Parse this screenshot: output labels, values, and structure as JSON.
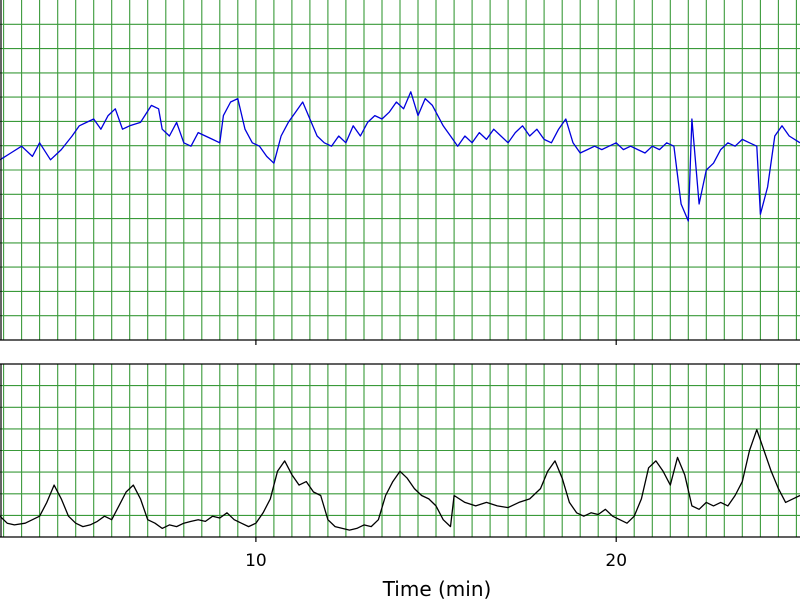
{
  "chart_data": [
    {
      "type": "line",
      "panel": "top",
      "title": "",
      "xlabel": "",
      "ylabel": "",
      "xlim": [
        2.9,
        25.1
      ],
      "ylim": [
        0,
        100
      ],
      "grid": true,
      "colors": {
        "line": "#0000dd",
        "grid": "#3a9a3a"
      },
      "series": [
        {
          "values": [
            [
              2.9,
              53
            ],
            [
              3.2,
              55
            ],
            [
              3.5,
              57
            ],
            [
              3.8,
              54
            ],
            [
              4.0,
              58
            ],
            [
              4.3,
              53
            ],
            [
              4.6,
              56
            ],
            [
              4.9,
              60
            ],
            [
              5.1,
              63
            ],
            [
              5.3,
              64
            ],
            [
              5.5,
              65
            ],
            [
              5.7,
              62
            ],
            [
              5.9,
              66
            ],
            [
              6.1,
              68
            ],
            [
              6.3,
              62
            ],
            [
              6.5,
              63
            ],
            [
              6.8,
              64
            ],
            [
              7.1,
              69
            ],
            [
              7.3,
              68
            ],
            [
              7.4,
              62
            ],
            [
              7.6,
              60
            ],
            [
              7.8,
              64
            ],
            [
              8.0,
              58
            ],
            [
              8.2,
              57
            ],
            [
              8.4,
              61
            ],
            [
              8.6,
              60
            ],
            [
              8.8,
              59
            ],
            [
              9.0,
              58
            ],
            [
              9.1,
              66
            ],
            [
              9.3,
              70
            ],
            [
              9.5,
              71
            ],
            [
              9.7,
              62
            ],
            [
              9.9,
              58
            ],
            [
              10.1,
              57
            ],
            [
              10.3,
              54
            ],
            [
              10.5,
              52
            ],
            [
              10.7,
              60
            ],
            [
              10.9,
              64
            ],
            [
              11.1,
              67
            ],
            [
              11.3,
              70
            ],
            [
              11.5,
              65
            ],
            [
              11.7,
              60
            ],
            [
              11.9,
              58
            ],
            [
              12.1,
              57
            ],
            [
              12.3,
              60
            ],
            [
              12.5,
              58
            ],
            [
              12.7,
              63
            ],
            [
              12.9,
              60
            ],
            [
              13.1,
              64
            ],
            [
              13.3,
              66
            ],
            [
              13.5,
              65
            ],
            [
              13.7,
              67
            ],
            [
              13.9,
              70
            ],
            [
              14.1,
              68
            ],
            [
              14.3,
              73
            ],
            [
              14.5,
              66
            ],
            [
              14.7,
              71
            ],
            [
              14.9,
              69
            ],
            [
              15.2,
              63
            ],
            [
              15.4,
              60
            ],
            [
              15.6,
              57
            ],
            [
              15.8,
              60
            ],
            [
              16.0,
              58
            ],
            [
              16.2,
              61
            ],
            [
              16.4,
              59
            ],
            [
              16.6,
              62
            ],
            [
              16.8,
              60
            ],
            [
              17.0,
              58
            ],
            [
              17.2,
              61
            ],
            [
              17.4,
              63
            ],
            [
              17.6,
              60
            ],
            [
              17.8,
              62
            ],
            [
              18.0,
              59
            ],
            [
              18.2,
              58
            ],
            [
              18.4,
              62
            ],
            [
              18.6,
              65
            ],
            [
              18.8,
              58
            ],
            [
              19.0,
              55
            ],
            [
              19.2,
              56
            ],
            [
              19.4,
              57
            ],
            [
              19.6,
              56
            ],
            [
              19.8,
              57
            ],
            [
              20.0,
              58
            ],
            [
              20.2,
              56
            ],
            [
              20.4,
              57
            ],
            [
              20.6,
              56
            ],
            [
              20.8,
              55
            ],
            [
              21.0,
              57
            ],
            [
              21.2,
              56
            ],
            [
              21.4,
              58
            ],
            [
              21.6,
              57
            ],
            [
              21.8,
              40
            ],
            [
              22.0,
              35
            ],
            [
              22.1,
              65
            ],
            [
              22.3,
              40
            ],
            [
              22.5,
              50
            ],
            [
              22.7,
              52
            ],
            [
              22.9,
              56
            ],
            [
              23.1,
              58
            ],
            [
              23.3,
              57
            ],
            [
              23.5,
              59
            ],
            [
              23.7,
              58
            ],
            [
              23.9,
              57
            ],
            [
              24.0,
              37
            ],
            [
              24.2,
              45
            ],
            [
              24.4,
              60
            ],
            [
              24.6,
              63
            ],
            [
              24.8,
              60
            ],
            [
              25.1,
              58
            ]
          ]
        }
      ]
    },
    {
      "type": "line",
      "panel": "bottom",
      "title": "",
      "xlabel": "Time (min)",
      "ylabel": "",
      "xlim": [
        2.9,
        25.1
      ],
      "ylim": [
        0,
        100
      ],
      "xticks": [
        10,
        20
      ],
      "tick_labels": [
        "10",
        "20"
      ],
      "grid": true,
      "colors": {
        "line": "#000000",
        "grid": "#3a9a3a"
      },
      "series": [
        {
          "values": [
            [
              2.9,
              12
            ],
            [
              3.1,
              8
            ],
            [
              3.3,
              7
            ],
            [
              3.6,
              8
            ],
            [
              3.8,
              10
            ],
            [
              4.0,
              12
            ],
            [
              4.2,
              20
            ],
            [
              4.4,
              30
            ],
            [
              4.6,
              22
            ],
            [
              4.8,
              12
            ],
            [
              5.0,
              8
            ],
            [
              5.2,
              6
            ],
            [
              5.4,
              7
            ],
            [
              5.6,
              9
            ],
            [
              5.8,
              12
            ],
            [
              6.0,
              10
            ],
            [
              6.2,
              18
            ],
            [
              6.4,
              26
            ],
            [
              6.6,
              30
            ],
            [
              6.8,
              22
            ],
            [
              7.0,
              10
            ],
            [
              7.2,
              8
            ],
            [
              7.4,
              5
            ],
            [
              7.6,
              7
            ],
            [
              7.8,
              6
            ],
            [
              8.0,
              8
            ],
            [
              8.2,
              9
            ],
            [
              8.4,
              10
            ],
            [
              8.6,
              9
            ],
            [
              8.8,
              12
            ],
            [
              9.0,
              11
            ],
            [
              9.2,
              14
            ],
            [
              9.4,
              10
            ],
            [
              9.6,
              8
            ],
            [
              9.8,
              6
            ],
            [
              10.0,
              8
            ],
            [
              10.2,
              14
            ],
            [
              10.4,
              22
            ],
            [
              10.6,
              38
            ],
            [
              10.8,
              44
            ],
            [
              11.0,
              36
            ],
            [
              11.2,
              30
            ],
            [
              11.4,
              32
            ],
            [
              11.6,
              26
            ],
            [
              11.8,
              24
            ],
            [
              12.0,
              10
            ],
            [
              12.2,
              6
            ],
            [
              12.4,
              5
            ],
            [
              12.6,
              4
            ],
            [
              12.8,
              5
            ],
            [
              13.0,
              7
            ],
            [
              13.2,
              6
            ],
            [
              13.4,
              10
            ],
            [
              13.6,
              24
            ],
            [
              13.8,
              32
            ],
            [
              14.0,
              38
            ],
            [
              14.2,
              34
            ],
            [
              14.4,
              28
            ],
            [
              14.6,
              24
            ],
            [
              14.8,
              22
            ],
            [
              15.0,
              18
            ],
            [
              15.2,
              10
            ],
            [
              15.4,
              6
            ],
            [
              15.5,
              24
            ],
            [
              15.8,
              20
            ],
            [
              16.1,
              18
            ],
            [
              16.4,
              20
            ],
            [
              16.7,
              18
            ],
            [
              17.0,
              17
            ],
            [
              17.3,
              20
            ],
            [
              17.6,
              22
            ],
            [
              17.9,
              28
            ],
            [
              18.1,
              38
            ],
            [
              18.3,
              44
            ],
            [
              18.5,
              34
            ],
            [
              18.7,
              20
            ],
            [
              18.9,
              14
            ],
            [
              19.1,
              12
            ],
            [
              19.3,
              14
            ],
            [
              19.5,
              13
            ],
            [
              19.7,
              16
            ],
            [
              19.9,
              12
            ],
            [
              20.1,
              10
            ],
            [
              20.3,
              8
            ],
            [
              20.5,
              12
            ],
            [
              20.7,
              22
            ],
            [
              20.9,
              40
            ],
            [
              21.1,
              44
            ],
            [
              21.3,
              38
            ],
            [
              21.5,
              30
            ],
            [
              21.7,
              46
            ],
            [
              21.9,
              36
            ],
            [
              22.1,
              18
            ],
            [
              22.3,
              16
            ],
            [
              22.5,
              20
            ],
            [
              22.7,
              18
            ],
            [
              22.9,
              20
            ],
            [
              23.1,
              18
            ],
            [
              23.3,
              24
            ],
            [
              23.5,
              32
            ],
            [
              23.7,
              50
            ],
            [
              23.9,
              62
            ],
            [
              24.1,
              50
            ],
            [
              24.3,
              38
            ],
            [
              24.5,
              28
            ],
            [
              24.7,
              20
            ],
            [
              24.9,
              22
            ],
            [
              25.1,
              24
            ]
          ]
        }
      ]
    }
  ]
}
